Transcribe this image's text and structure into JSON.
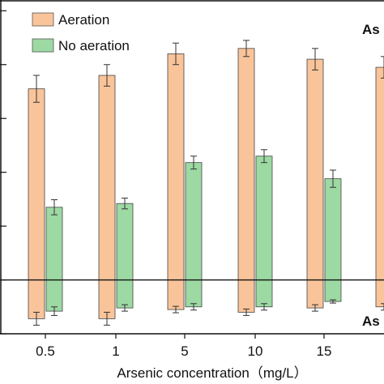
{
  "chart_data": {
    "type": "bar",
    "title": "",
    "xlabel": "Arsenic concentration（mg/L）",
    "ylabel": "",
    "categories": [
      "0.5",
      "1",
      "5",
      "10",
      "15",
      ""
    ],
    "series": [
      {
        "name": "Aeration",
        "color": "#f9c49a",
        "values": [
          3.55,
          3.8,
          4.2,
          4.3,
          4.1,
          3.95
        ],
        "errors": [
          0.25,
          0.2,
          0.2,
          0.15,
          0.2,
          0.2
        ],
        "values_below": [
          -0.72,
          -0.72,
          -0.55,
          -0.6,
          -0.52,
          -0.5
        ],
        "errors_below": [
          0.12,
          0.12,
          0.06,
          0.06,
          0.06,
          0.06
        ]
      },
      {
        "name": "No aeration",
        "color": "#9dd9a3",
        "values": [
          1.35,
          1.42,
          2.18,
          2.3,
          1.88,
          0
        ],
        "errors": [
          0.14,
          0.1,
          0.12,
          0.12,
          0.16,
          0
        ],
        "values_below": [
          -0.58,
          -0.52,
          -0.5,
          -0.5,
          -0.4,
          0
        ],
        "errors_below": [
          0.08,
          0.06,
          0.06,
          0.06,
          0.03,
          0
        ]
      }
    ],
    "ylim": [
      -1,
      5.2
    ],
    "zero_line": 0,
    "legend_position": "top-left",
    "annotations": [
      "As",
      "As"
    ]
  }
}
